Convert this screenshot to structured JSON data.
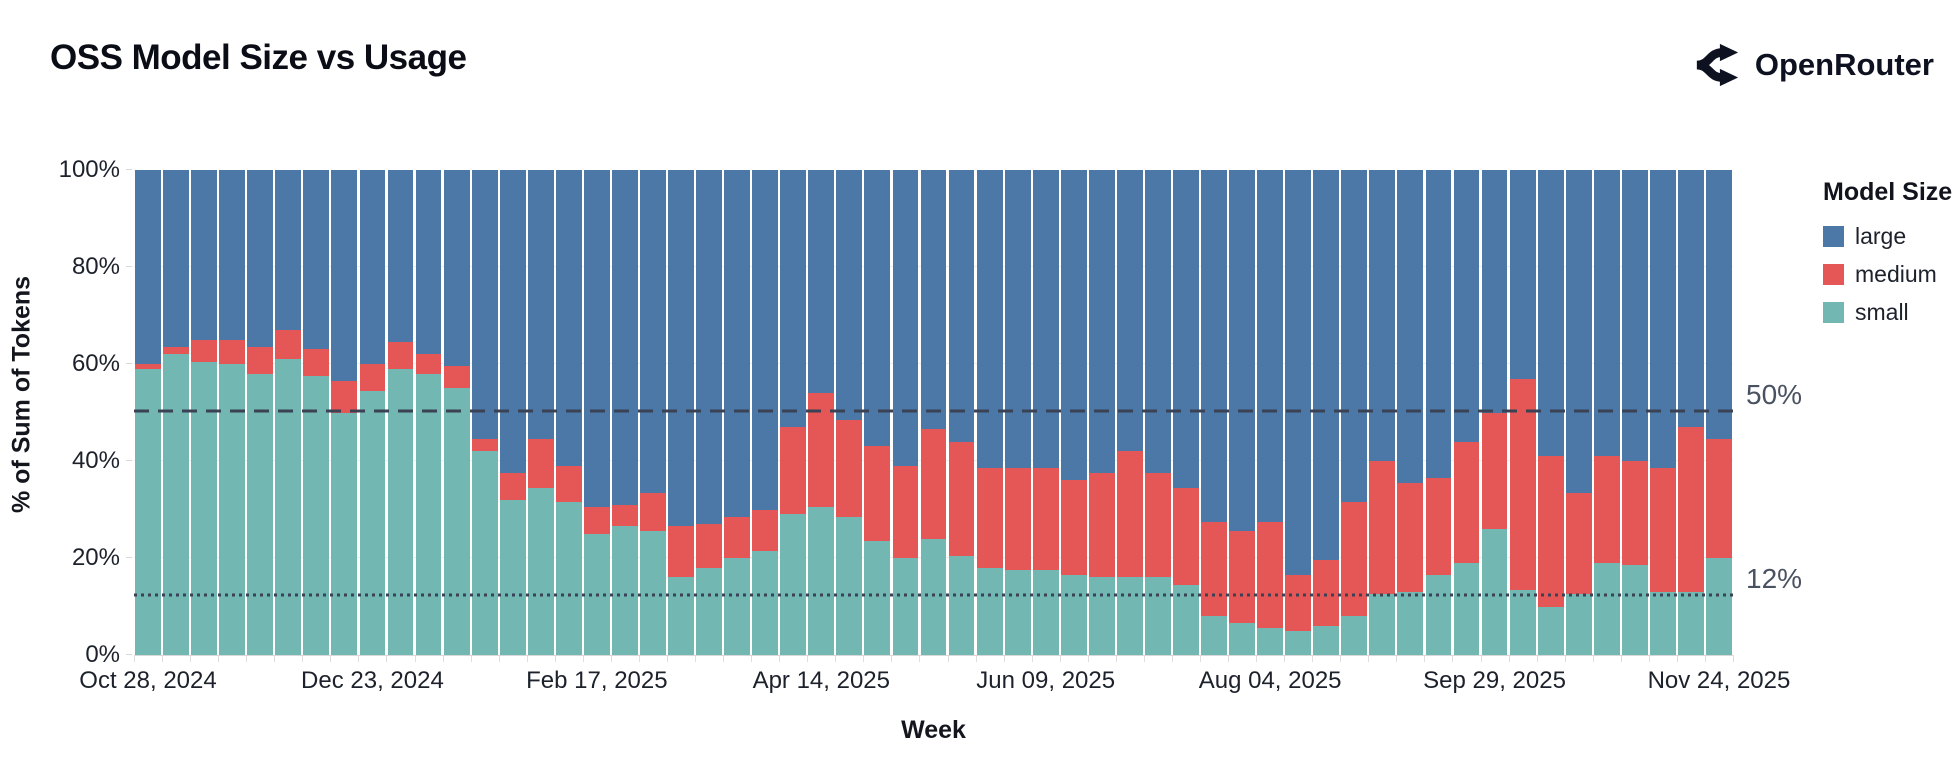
{
  "header": {
    "title": "OSS Model Size vs Usage",
    "brand": "OpenRouter"
  },
  "colors": {
    "large": "#4c78a8",
    "medium": "#e45756",
    "small": "#72b7b2",
    "reference_line": "#3a4254",
    "title_text": "#0b0d16",
    "grid": "#ececec"
  },
  "legend": {
    "title": "Model Size",
    "position": "right",
    "items": [
      {
        "label": "large",
        "color": "#4c78a8"
      },
      {
        "label": "medium",
        "color": "#e45756"
      },
      {
        "label": "small",
        "color": "#72b7b2"
      }
    ]
  },
  "chart_data": {
    "type": "bar",
    "stacked": true,
    "title": "OSS Model Size vs Usage",
    "xlabel": "Week",
    "ylabel": "% of Sum of Tokens",
    "ylim": [
      0,
      100
    ],
    "grid": true,
    "legend_position": "right",
    "y_ticks": [
      {
        "value": 0,
        "label": "0%"
      },
      {
        "value": 20,
        "label": "20%"
      },
      {
        "value": 40,
        "label": "40%"
      },
      {
        "value": 60,
        "label": "60%"
      },
      {
        "value": 80,
        "label": "80%"
      },
      {
        "value": 100,
        "label": "100%"
      }
    ],
    "x": [
      "Oct 28, 2024",
      "Nov 04, 2024",
      "Nov 11, 2024",
      "Nov 18, 2024",
      "Nov 25, 2024",
      "Dec 02, 2024",
      "Dec 09, 2024",
      "Dec 16, 2024",
      "Dec 23, 2024",
      "Dec 30, 2024",
      "Jan 06, 2025",
      "Jan 13, 2025",
      "Jan 20, 2025",
      "Jan 27, 2025",
      "Feb 03, 2025",
      "Feb 10, 2025",
      "Feb 17, 2025",
      "Feb 24, 2025",
      "Mar 03, 2025",
      "Mar 10, 2025",
      "Mar 17, 2025",
      "Mar 24, 2025",
      "Mar 31, 2025",
      "Apr 07, 2025",
      "Apr 14, 2025",
      "Apr 21, 2025",
      "Apr 28, 2025",
      "May 05, 2025",
      "May 12, 2025",
      "May 19, 2025",
      "May 26, 2025",
      "Jun 02, 2025",
      "Jun 09, 2025",
      "Jun 16, 2025",
      "Jun 23, 2025",
      "Jun 30, 2025",
      "Jul 07, 2025",
      "Jul 14, 2025",
      "Jul 21, 2025",
      "Jul 28, 2025",
      "Aug 04, 2025",
      "Aug 11, 2025",
      "Aug 18, 2025",
      "Aug 25, 2025",
      "Sep 01, 2025",
      "Sep 08, 2025",
      "Sep 15, 2025",
      "Sep 22, 2025",
      "Sep 29, 2025",
      "Oct 06, 2025",
      "Oct 13, 2025",
      "Oct 20, 2025",
      "Oct 27, 2025",
      "Nov 03, 2025",
      "Nov 10, 2025",
      "Nov 17, 2025",
      "Nov 24, 2025"
    ],
    "x_tick_indices": [
      0,
      8,
      16,
      24,
      32,
      40,
      48,
      56
    ],
    "x_tick_labels": [
      "Oct 28, 2024",
      "Dec 23, 2024",
      "Feb 17, 2025",
      "Apr 14, 2025",
      "Jun 09, 2025",
      "Aug 04, 2025",
      "Sep 29, 2025",
      "Nov 24, 2025"
    ],
    "series": [
      {
        "name": "small",
        "color": "#72b7b2",
        "values": [
          59,
          62,
          60.5,
          60,
          58,
          61,
          57.5,
          50,
          54.5,
          59,
          58,
          55,
          42,
          32,
          34.5,
          31.5,
          25,
          26.5,
          25.5,
          16,
          18,
          20,
          21.5,
          29,
          30.5,
          28.5,
          23.5,
          20,
          24,
          20.5,
          18,
          17.5,
          17.5,
          16.5,
          16,
          16,
          16,
          14.5,
          8,
          6.5,
          5.5,
          5,
          6,
          8,
          12.5,
          13,
          16.5,
          19,
          26,
          13.5,
          10,
          12.5,
          19,
          18.5,
          13,
          13,
          20
        ]
      },
      {
        "name": "medium",
        "color": "#e45756",
        "values": [
          1,
          1.5,
          4.5,
          5,
          5.5,
          6,
          5.5,
          6.5,
          5.5,
          5.5,
          4,
          4.5,
          2.5,
          5.5,
          10,
          7.5,
          5.5,
          4.5,
          8,
          10.5,
          9,
          8.5,
          8.5,
          18,
          23.5,
          20,
          19.5,
          19,
          22.5,
          23.5,
          20.5,
          21,
          21,
          19.5,
          21.5,
          26,
          21.5,
          20,
          19.5,
          19,
          22,
          11.5,
          13.5,
          23.5,
          27.5,
          22.5,
          20,
          25,
          24,
          43.5,
          31,
          21,
          22,
          21.5,
          25.5,
          34,
          24.5
        ]
      },
      {
        "name": "large",
        "color": "#4c78a8",
        "values": [
          40,
          36.5,
          35,
          35,
          36.5,
          33,
          37,
          43.5,
          40,
          35.5,
          38,
          40.5,
          55.5,
          62.5,
          55.5,
          61,
          69.5,
          69,
          66.5,
          73.5,
          73,
          71.5,
          70,
          53,
          46,
          51.5,
          57,
          61,
          53.5,
          56,
          61.5,
          61.5,
          61.5,
          64,
          62.5,
          58,
          62.5,
          65.5,
          72.5,
          74.5,
          72.5,
          83.5,
          80.5,
          68.5,
          60,
          64.5,
          63.5,
          56,
          50,
          43,
          59,
          66.5,
          59,
          60,
          61.5,
          53,
          55.5
        ]
      }
    ],
    "reference_lines": [
      {
        "label": "50%",
        "value": 50,
        "style": "dashed"
      },
      {
        "label": "12%",
        "value": 12,
        "style": "dotted"
      }
    ]
  }
}
